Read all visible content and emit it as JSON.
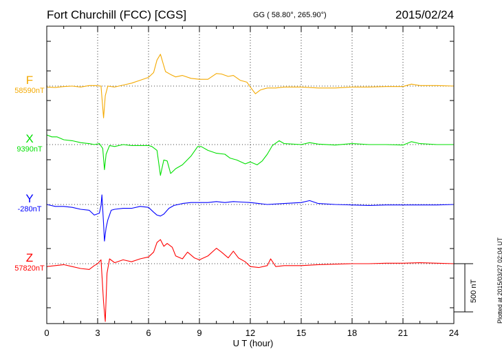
{
  "header": {
    "station": "Fort Churchill (FCC)  [CGS]",
    "coords": "GG ( 58.80°, 265.90°)",
    "date": "2015/02/24"
  },
  "plotted_note": "Plotted at 2015/03/27 02:04 UT",
  "chart_data": {
    "type": "line",
    "xlabel": "U T (hour)",
    "xlim": [
      0,
      24
    ],
    "xticks": [
      "0",
      "3",
      "6",
      "9",
      "12",
      "15",
      "18",
      "21",
      "24"
    ],
    "scale_bar_label": "500 nT",
    "scale_bar_nT": 500,
    "grid": "dotted vertical every 3 hours, dotted baseline per component",
    "series": [
      {
        "name": "F",
        "baseline_label": "58590nT",
        "color": "#f4a900",
        "points": [
          [
            0,
            -10
          ],
          [
            0.5,
            -15
          ],
          [
            1,
            -5
          ],
          [
            1.5,
            0
          ],
          [
            2,
            -10
          ],
          [
            2.5,
            5
          ],
          [
            2.9,
            5
          ],
          [
            3.2,
            0
          ],
          [
            3.35,
            -330
          ],
          [
            3.45,
            -100
          ],
          [
            3.6,
            0
          ],
          [
            4,
            -10
          ],
          [
            4.5,
            10
          ],
          [
            5,
            30
          ],
          [
            5.5,
            60
          ],
          [
            6,
            90
          ],
          [
            6.3,
            140
          ],
          [
            6.5,
            270
          ],
          [
            6.7,
            330
          ],
          [
            6.9,
            210
          ],
          [
            7,
            150
          ],
          [
            7.3,
            120
          ],
          [
            7.6,
            95
          ],
          [
            8,
            110
          ],
          [
            8.5,
            80
          ],
          [
            9,
            70
          ],
          [
            9.5,
            70
          ],
          [
            10,
            130
          ],
          [
            10.3,
            125
          ],
          [
            10.7,
            100
          ],
          [
            11,
            110
          ],
          [
            11.4,
            60
          ],
          [
            11.8,
            40
          ],
          [
            12,
            -10
          ],
          [
            12.3,
            -80
          ],
          [
            12.6,
            -40
          ],
          [
            13,
            -20
          ],
          [
            13.5,
            -20
          ],
          [
            14,
            -10
          ],
          [
            14.5,
            -10
          ],
          [
            15,
            -10
          ],
          [
            16,
            -20
          ],
          [
            17,
            -20
          ],
          [
            18,
            -10
          ],
          [
            19,
            -10
          ],
          [
            20,
            -5
          ],
          [
            21,
            -5
          ],
          [
            21.5,
            20
          ],
          [
            22,
            5
          ],
          [
            23,
            5
          ],
          [
            24,
            0
          ]
        ]
      },
      {
        "name": "X",
        "baseline_label": "9390nT",
        "color": "#00e000",
        "points": [
          [
            0,
            100
          ],
          [
            0.3,
            80
          ],
          [
            0.6,
            80
          ],
          [
            1,
            50
          ],
          [
            1.5,
            40
          ],
          [
            2,
            20
          ],
          [
            2.5,
            10
          ],
          [
            2.8,
            0
          ],
          [
            3.1,
            10
          ],
          [
            3.3,
            -40
          ],
          [
            3.4,
            -260
          ],
          [
            3.5,
            -100
          ],
          [
            3.7,
            -10
          ],
          [
            4,
            -20
          ],
          [
            4.5,
            0
          ],
          [
            5,
            -10
          ],
          [
            5.5,
            -10
          ],
          [
            6,
            -10
          ],
          [
            6.2,
            -20
          ],
          [
            6.5,
            -60
          ],
          [
            6.7,
            -320
          ],
          [
            6.9,
            -160
          ],
          [
            7.1,
            -170
          ],
          [
            7.3,
            -300
          ],
          [
            7.6,
            -250
          ],
          [
            8,
            -210
          ],
          [
            8.5,
            -120
          ],
          [
            8.9,
            -20
          ],
          [
            9.1,
            -20
          ],
          [
            9.5,
            -60
          ],
          [
            10,
            -90
          ],
          [
            10.5,
            -100
          ],
          [
            10.8,
            -140
          ],
          [
            11.2,
            -160
          ],
          [
            11.7,
            -200
          ],
          [
            12,
            -180
          ],
          [
            12.4,
            -210
          ],
          [
            12.7,
            -170
          ],
          [
            13,
            -100
          ],
          [
            13.3,
            -10
          ],
          [
            13.7,
            40
          ],
          [
            14,
            10
          ],
          [
            15,
            0
          ],
          [
            15.5,
            20
          ],
          [
            16,
            5
          ],
          [
            17,
            -5
          ],
          [
            18,
            10
          ],
          [
            19,
            0
          ],
          [
            20,
            0
          ],
          [
            21,
            -5
          ],
          [
            21.5,
            30
          ],
          [
            22,
            10
          ],
          [
            23,
            0
          ],
          [
            24,
            0
          ]
        ]
      },
      {
        "name": "Y",
        "baseline_label": "-280nT",
        "color": "#0000ff",
        "points": [
          [
            0,
            0
          ],
          [
            0.5,
            -20
          ],
          [
            1,
            -20
          ],
          [
            1.5,
            -30
          ],
          [
            2,
            -50
          ],
          [
            2.5,
            -60
          ],
          [
            2.8,
            -110
          ],
          [
            3.1,
            -90
          ],
          [
            3.2,
            -10
          ],
          [
            3.25,
            100
          ],
          [
            3.35,
            -200
          ],
          [
            3.4,
            -380
          ],
          [
            3.5,
            -240
          ],
          [
            3.6,
            -160
          ],
          [
            3.8,
            -60
          ],
          [
            4,
            -50
          ],
          [
            4.5,
            -40
          ],
          [
            5,
            -40
          ],
          [
            5.5,
            -20
          ],
          [
            6,
            -30
          ],
          [
            6.3,
            -80
          ],
          [
            6.5,
            -110
          ],
          [
            6.7,
            -120
          ],
          [
            6.9,
            -100
          ],
          [
            7.2,
            -40
          ],
          [
            7.5,
            -10
          ],
          [
            8,
            10
          ],
          [
            8.5,
            20
          ],
          [
            9,
            20
          ],
          [
            9.5,
            20
          ],
          [
            10,
            30
          ],
          [
            10.5,
            20
          ],
          [
            11,
            30
          ],
          [
            11.5,
            25
          ],
          [
            12,
            20
          ],
          [
            12.5,
            10
          ],
          [
            13,
            0
          ],
          [
            14,
            10
          ],
          [
            15,
            20
          ],
          [
            15.5,
            40
          ],
          [
            16,
            10
          ],
          [
            17,
            0
          ],
          [
            18,
            -5
          ],
          [
            19,
            -10
          ],
          [
            20,
            -5
          ],
          [
            21,
            -5
          ],
          [
            22,
            -5
          ],
          [
            23,
            -5
          ],
          [
            24,
            0
          ]
        ]
      },
      {
        "name": "Z",
        "baseline_label": "57820nT",
        "color": "#ff0000",
        "points": [
          [
            0,
            -30
          ],
          [
            0.5,
            -20
          ],
          [
            1,
            -10
          ],
          [
            1.5,
            -30
          ],
          [
            2,
            -50
          ],
          [
            2.5,
            -60
          ],
          [
            2.8,
            -20
          ],
          [
            3,
            0
          ],
          [
            3.2,
            40
          ],
          [
            3.35,
            -400
          ],
          [
            3.45,
            -600
          ],
          [
            3.55,
            -100
          ],
          [
            3.7,
            50
          ],
          [
            4,
            10
          ],
          [
            4.5,
            40
          ],
          [
            5,
            20
          ],
          [
            5.5,
            50
          ],
          [
            6,
            70
          ],
          [
            6.3,
            120
          ],
          [
            6.5,
            220
          ],
          [
            6.7,
            250
          ],
          [
            6.9,
            180
          ],
          [
            7.1,
            210
          ],
          [
            7.4,
            170
          ],
          [
            7.6,
            80
          ],
          [
            8,
            50
          ],
          [
            8.3,
            120
          ],
          [
            8.7,
            60
          ],
          [
            9,
            40
          ],
          [
            9.5,
            80
          ],
          [
            10,
            160
          ],
          [
            10.3,
            120
          ],
          [
            10.7,
            60
          ],
          [
            11,
            130
          ],
          [
            11.3,
            60
          ],
          [
            11.7,
            20
          ],
          [
            12,
            -30
          ],
          [
            12.5,
            -40
          ],
          [
            13,
            -20
          ],
          [
            13.2,
            50
          ],
          [
            13.5,
            -30
          ],
          [
            14,
            -20
          ],
          [
            15,
            -20
          ],
          [
            16,
            -10
          ],
          [
            17,
            -5
          ],
          [
            18,
            0
          ],
          [
            19,
            0
          ],
          [
            20,
            5
          ],
          [
            21,
            5
          ],
          [
            22,
            10
          ],
          [
            23,
            5
          ],
          [
            24,
            0
          ]
        ]
      }
    ]
  }
}
